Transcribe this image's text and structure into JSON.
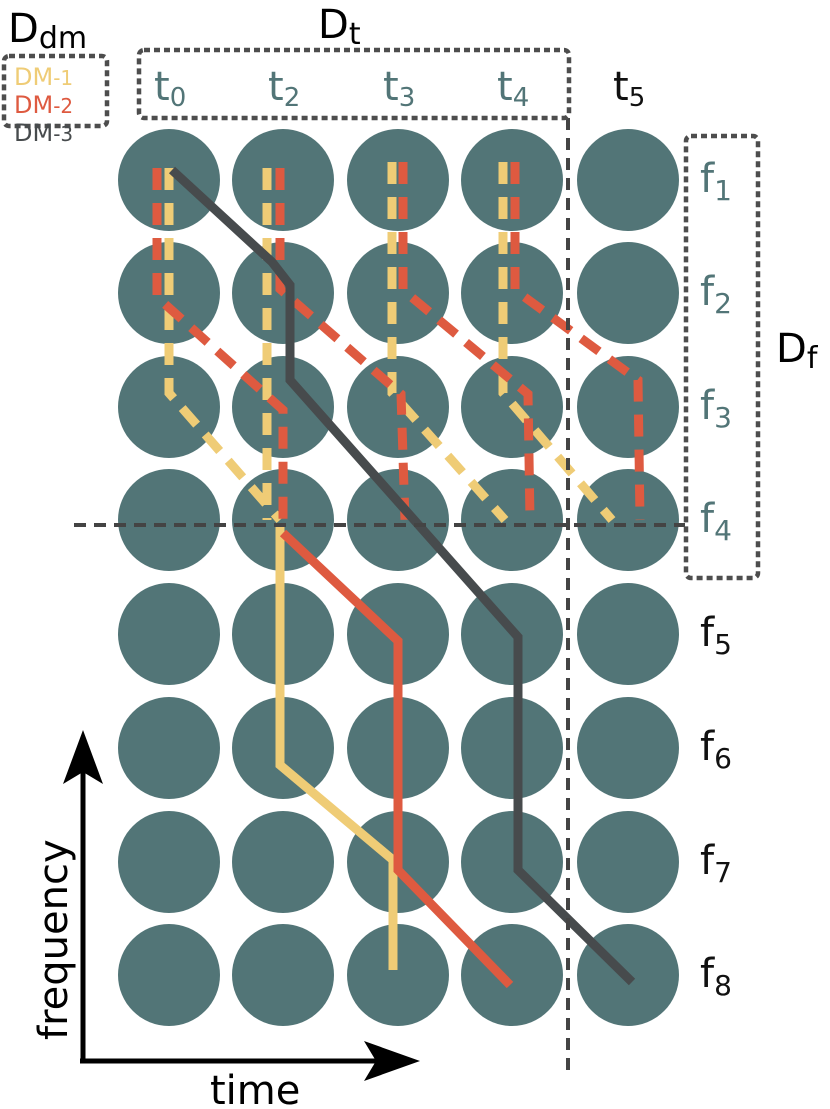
{
  "labels": {
    "ddm_main": "D",
    "ddm_sub": "dm",
    "dt_main": "D",
    "dt_sub": "t",
    "df_main": "D",
    "df_sub": "f",
    "time_axis": "time",
    "frequency_axis": "frequency"
  },
  "legend": [
    {
      "main": "DM",
      "sub": "1",
      "color": "#EFCC76"
    },
    {
      "main": "DM",
      "sub": "2",
      "color": "#DE5A40"
    },
    {
      "main": "DM",
      "sub": "3",
      "color": "#474B4D"
    }
  ],
  "time_slots": [
    {
      "main": "t",
      "sub": "0",
      "in_set": true
    },
    {
      "main": "t",
      "sub": "2",
      "in_set": true
    },
    {
      "main": "t",
      "sub": "3",
      "in_set": true
    },
    {
      "main": "t",
      "sub": "4",
      "in_set": true
    },
    {
      "main": "t",
      "sub": "5",
      "in_set": false
    }
  ],
  "freq_slots": [
    {
      "main": "f",
      "sub": "1",
      "in_set": true
    },
    {
      "main": "f",
      "sub": "2",
      "in_set": true
    },
    {
      "main": "f",
      "sub": "3",
      "in_set": true
    },
    {
      "main": "f",
      "sub": "4",
      "in_set": true
    },
    {
      "main": "f",
      "sub": "5",
      "in_set": false
    },
    {
      "main": "f",
      "sub": "6",
      "in_set": false
    },
    {
      "main": "f",
      "sub": "7",
      "in_set": false
    },
    {
      "main": "f",
      "sub": "8",
      "in_set": false
    }
  ],
  "colors": {
    "circle": "#527577",
    "label_in_set": "#527577",
    "label_out_set": "#111111",
    "box_border": "#4d4d4d",
    "divider": "#444444",
    "axis": "#000000"
  }
}
